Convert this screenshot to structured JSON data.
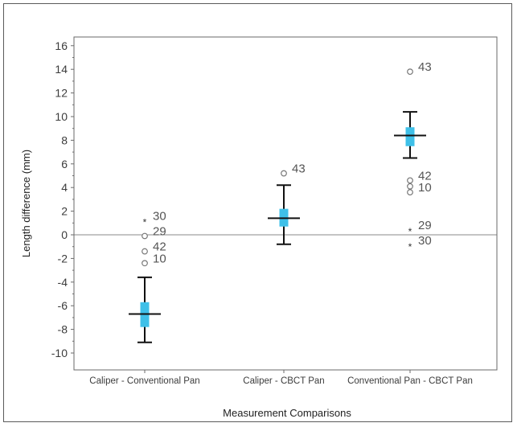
{
  "chart_data": {
    "type": "box",
    "ylabel": "Length difference (mm)",
    "xlabel": "Measurement Comparisons",
    "ylim": [
      -11,
      16.5
    ],
    "yticks": [
      16,
      14,
      12,
      10,
      8,
      6,
      4,
      2,
      0,
      -2,
      -4,
      -6,
      -8,
      -10
    ],
    "yticks_text": [
      "16",
      "14",
      "12",
      "10",
      "8",
      "6",
      "4",
      "2",
      "0",
      "-2",
      "-4",
      "-6",
      "-8",
      "-10"
    ],
    "reference_line": 0,
    "box_color": "#3fc0e8",
    "categories": [
      "Caliper - Conventional Pan",
      "Caliper - CBCT Pan",
      "Conventional Pan - CBCT Pan"
    ],
    "boxes": [
      {
        "whisker_low": -9.1,
        "q1": -7.8,
        "median": -6.7,
        "q3": -5.7,
        "whisker_high": -3.6,
        "outliers": [
          {
            "value": 1.2,
            "marker": "star",
            "label": "30"
          },
          {
            "value": -0.1,
            "marker": "circle",
            "label": "29"
          },
          {
            "value": -1.4,
            "marker": "circle",
            "label": "42"
          },
          {
            "value": -2.4,
            "marker": "circle",
            "label": "10"
          }
        ]
      },
      {
        "whisker_low": -0.8,
        "q1": 0.7,
        "median": 1.4,
        "q3": 2.2,
        "whisker_high": 4.2,
        "outliers": [
          {
            "value": 5.2,
            "marker": "circle",
            "label": "43"
          }
        ]
      },
      {
        "whisker_low": 6.5,
        "q1": 7.5,
        "median": 8.4,
        "q3": 9.1,
        "whisker_high": 10.4,
        "outliers": [
          {
            "value": 13.8,
            "marker": "circle",
            "label": "43"
          },
          {
            "value": 4.6,
            "marker": "circle",
            "label": "42"
          },
          {
            "value": 4.1,
            "marker": "circle",
            "label": ""
          },
          {
            "value": 3.6,
            "marker": "circle",
            "label": "10"
          },
          {
            "value": 0.4,
            "marker": "star",
            "label": "29"
          },
          {
            "value": -0.9,
            "marker": "star",
            "label": "30"
          }
        ]
      }
    ]
  }
}
